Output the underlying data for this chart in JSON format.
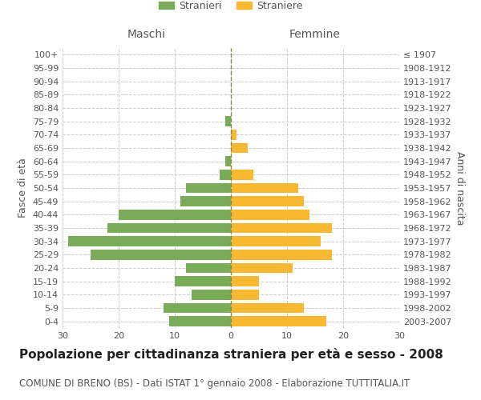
{
  "age_groups": [
    "100+",
    "95-99",
    "90-94",
    "85-89",
    "80-84",
    "75-79",
    "70-74",
    "65-69",
    "60-64",
    "55-59",
    "50-54",
    "45-49",
    "40-44",
    "35-39",
    "30-34",
    "25-29",
    "20-24",
    "15-19",
    "10-14",
    "5-9",
    "0-4"
  ],
  "birth_years": [
    "≤ 1907",
    "1908-1912",
    "1913-1917",
    "1918-1922",
    "1923-1927",
    "1928-1932",
    "1933-1937",
    "1938-1942",
    "1943-1947",
    "1948-1952",
    "1953-1957",
    "1958-1962",
    "1963-1967",
    "1968-1972",
    "1973-1977",
    "1978-1982",
    "1983-1987",
    "1988-1992",
    "1993-1997",
    "1998-2002",
    "2003-2007"
  ],
  "maschi": [
    0,
    0,
    0,
    0,
    0,
    1,
    0,
    0,
    1,
    2,
    8,
    9,
    20,
    22,
    29,
    25,
    8,
    10,
    7,
    12,
    11
  ],
  "femmine": [
    0,
    0,
    0,
    0,
    0,
    0,
    1,
    3,
    0,
    4,
    12,
    13,
    14,
    18,
    16,
    18,
    11,
    5,
    5,
    13,
    17
  ],
  "color_maschi": "#7aab58",
  "color_femmine": "#f9b832",
  "color_center_line": "#8b8b40",
  "bg_color": "#ffffff",
  "grid_color": "#cccccc",
  "title": "Popolazione per cittadinanza straniera per età e sesso - 2008",
  "subtitle": "COMUNE DI BRENO (BS) - Dati ISTAT 1° gennaio 2008 - Elaborazione TUTTITALIA.IT",
  "xlabel_left": "Maschi",
  "xlabel_right": "Femmine",
  "ylabel_left": "Fasce di età",
  "ylabel_right": "Anni di nascita",
  "legend_maschi": "Stranieri",
  "legend_femmine": "Straniere",
  "xlim": 30,
  "title_fontsize": 11,
  "subtitle_fontsize": 8.5,
  "label_fontsize": 9,
  "tick_fontsize": 8
}
